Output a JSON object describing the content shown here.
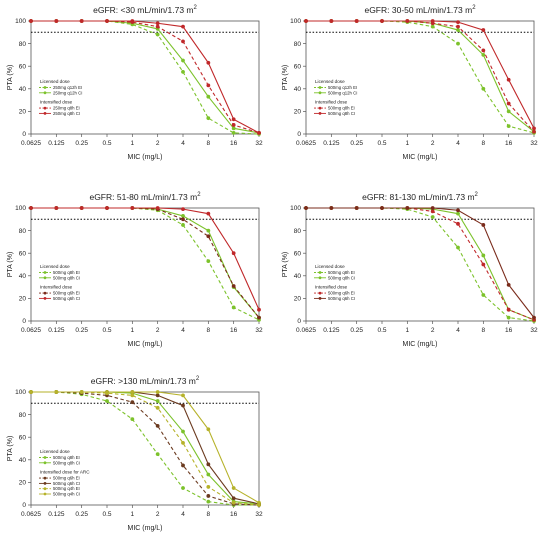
{
  "colors": {
    "green": "#7cc22b",
    "red": "#c0282a",
    "darkred": "#7a2b1b",
    "lightgreen": "#7cc22b",
    "olive": "#b6b22a",
    "brown": "#6b3a1f",
    "target": "#000000"
  },
  "chart_data": [
    {
      "type": "line",
      "title": "eGFR: <30 mL/min/1.73 m",
      "title_sup": "2",
      "xlabel": "MIC (mg/L)",
      "ylabel": "PTA (%)",
      "x_categories": [
        "0.0625",
        "0.125",
        "0.25",
        "0.5",
        "1",
        "2",
        "4",
        "8",
        "16",
        "32"
      ],
      "y_ticks": [
        "0",
        "20",
        "40",
        "60",
        "80",
        "100"
      ],
      "ylim": [
        0,
        100
      ],
      "target_line": 90,
      "legend_groups": [
        {
          "heading": "Licensed dose",
          "items": [
            0,
            1
          ]
        },
        {
          "heading": "Intensified dose",
          "items": [
            2,
            3
          ]
        }
      ],
      "series": [
        {
          "name": "250mg q12h EI",
          "color": "green",
          "dash": true,
          "values": [
            100,
            100,
            100,
            100,
            97,
            88,
            55,
            14,
            1,
            0
          ]
        },
        {
          "name": "250mg q12h CI",
          "color": "green",
          "dash": false,
          "values": [
            100,
            100,
            100,
            100,
            98,
            93,
            65,
            33,
            5,
            1
          ]
        },
        {
          "name": "250mg q8h EI",
          "color": "red",
          "dash": true,
          "values": [
            100,
            100,
            100,
            100,
            99,
            95,
            82,
            43,
            8,
            1
          ]
        },
        {
          "name": "250mg q8h CI",
          "color": "red",
          "dash": false,
          "values": [
            100,
            100,
            100,
            100,
            100,
            98,
            95,
            63,
            13,
            1
          ]
        }
      ]
    },
    {
      "type": "line",
      "title": "eGFR: 30-50 mL/min/1.73 m",
      "title_sup": "2",
      "xlabel": "MIC (mg/L)",
      "ylabel": "PTA (%)",
      "x_categories": [
        "0.0625",
        "0.125",
        "0.25",
        "0.5",
        "1",
        "2",
        "4",
        "8",
        "16",
        "32"
      ],
      "y_ticks": [
        "0",
        "20",
        "40",
        "60",
        "80",
        "100"
      ],
      "ylim": [
        0,
        100
      ],
      "target_line": 90,
      "legend_groups": [
        {
          "heading": "Licensed dose",
          "items": [
            0,
            1
          ]
        },
        {
          "heading": "Intensified dose",
          "items": [
            2,
            3
          ]
        }
      ],
      "series": [
        {
          "name": "500mg q12h EI",
          "color": "green",
          "dash": true,
          "values": [
            100,
            100,
            100,
            100,
            99,
            95,
            80,
            40,
            7,
            1
          ]
        },
        {
          "name": "500mg q12h CI",
          "color": "green",
          "dash": false,
          "values": [
            100,
            100,
            100,
            100,
            100,
            98,
            92,
            70,
            20,
            2
          ]
        },
        {
          "name": "500mg q8h EI",
          "color": "red",
          "dash": true,
          "values": [
            100,
            100,
            100,
            100,
            100,
            98,
            95,
            74,
            27,
            2
          ]
        },
        {
          "name": "500mg q8h CI",
          "color": "red",
          "dash": false,
          "values": [
            100,
            100,
            100,
            100,
            100,
            100,
            99,
            92,
            48,
            5
          ]
        }
      ]
    },
    {
      "type": "line",
      "title": "eGFR: 51-80 mL/min/1.73 m",
      "title_sup": "2",
      "xlabel": "MIC (mg/L)",
      "ylabel": "PTA (%)",
      "x_categories": [
        "0.0625",
        "0.125",
        "0.25",
        "0.5",
        "1",
        "2",
        "4",
        "8",
        "16",
        "32"
      ],
      "y_ticks": [
        "0",
        "20",
        "40",
        "60",
        "80",
        "100"
      ],
      "ylim": [
        0,
        100
      ],
      "target_line": 90,
      "legend_groups": [
        {
          "heading": "Licensed dose",
          "items": [
            0,
            1
          ]
        },
        {
          "heading": "Intensified dose",
          "items": [
            2,
            3
          ]
        }
      ],
      "series": [
        {
          "name": "500mg q8h EI",
          "color": "green",
          "dash": true,
          "values": [
            100,
            100,
            100,
            100,
            100,
            98,
            85,
            53,
            12,
            1
          ]
        },
        {
          "name": "500mg q8h CI",
          "color": "green",
          "dash": false,
          "values": [
            100,
            100,
            100,
            100,
            100,
            99,
            93,
            80,
            30,
            3
          ]
        },
        {
          "name": "500mg q6h EI",
          "color": "darkred",
          "dash": true,
          "values": [
            100,
            100,
            100,
            100,
            100,
            99,
            90,
            75,
            31,
            3
          ]
        },
        {
          "name": "500mg q6h CI",
          "color": "red",
          "dash": false,
          "values": [
            100,
            100,
            100,
            100,
            100,
            100,
            99,
            95,
            60,
            10
          ]
        }
      ]
    },
    {
      "type": "line",
      "title": "eGFR: 81-130 mL/min/1.73 m",
      "title_sup": "2",
      "xlabel": "MIC (mg/L)",
      "ylabel": "PTA (%)",
      "x_categories": [
        "0.0625",
        "0.125",
        "0.25",
        "0.5",
        "1",
        "2",
        "4",
        "8",
        "16",
        "32"
      ],
      "y_ticks": [
        "0",
        "20",
        "40",
        "60",
        "80",
        "100"
      ],
      "ylim": [
        0,
        100
      ],
      "target_line": 90,
      "legend_groups": [
        {
          "heading": "Licensed dose",
          "items": [
            0,
            1
          ]
        },
        {
          "heading": "Intensified dose",
          "items": [
            2,
            3
          ]
        }
      ],
      "series": [
        {
          "name": "500mg q8h EI",
          "color": "green",
          "dash": true,
          "values": [
            100,
            100,
            100,
            100,
            99,
            92,
            65,
            23,
            3,
            0
          ]
        },
        {
          "name": "500mg q8h CI",
          "color": "green",
          "dash": false,
          "values": [
            100,
            100,
            100,
            100,
            100,
            99,
            95,
            58,
            10,
            1
          ]
        },
        {
          "name": "500mg q6h EI",
          "color": "red",
          "dash": true,
          "values": [
            100,
            100,
            100,
            100,
            100,
            97,
            86,
            50,
            10,
            1
          ]
        },
        {
          "name": "500mg q6h CI",
          "color": "darkred",
          "dash": false,
          "values": [
            100,
            100,
            100,
            100,
            100,
            100,
            98,
            85,
            32,
            3
          ]
        }
      ]
    },
    {
      "type": "line",
      "title": "eGFR: >130 mL/min/1.73 m",
      "title_sup": "2",
      "xlabel": "MIC (mg/L)",
      "ylabel": "PTA (%)",
      "x_categories": [
        "0.0625",
        "0.125",
        "0.25",
        "0.5",
        "1",
        "2",
        "4",
        "8",
        "16",
        "32"
      ],
      "y_ticks": [
        "0",
        "20",
        "40",
        "60",
        "80",
        "100"
      ],
      "ylim": [
        0,
        100
      ],
      "target_line": 90,
      "legend_groups": [
        {
          "heading": "Licensed dose",
          "items": [
            0,
            1
          ]
        },
        {
          "heading": "Intensified dose for ARC",
          "items": [
            2,
            3,
            4,
            5
          ]
        }
      ],
      "series": [
        {
          "name": "500mg q8h EI",
          "color": "lightgreen",
          "dash": true,
          "values": [
            100,
            100,
            98,
            92,
            76,
            45,
            15,
            3,
            0,
            0
          ]
        },
        {
          "name": "500mg q8h CI",
          "color": "lightgreen",
          "dash": false,
          "values": [
            100,
            100,
            100,
            100,
            99,
            92,
            65,
            27,
            3,
            1
          ]
        },
        {
          "name": "500mg q6h EI",
          "color": "brown",
          "dash": true,
          "values": [
            100,
            100,
            99,
            97,
            91,
            70,
            35,
            8,
            1,
            0
          ]
        },
        {
          "name": "500mg q6h CI",
          "color": "brown",
          "dash": false,
          "values": [
            100,
            100,
            100,
            100,
            100,
            97,
            88,
            36,
            6,
            1
          ]
        },
        {
          "name": "500mg q4h EI",
          "color": "olive",
          "dash": true,
          "values": [
            100,
            100,
            100,
            99,
            97,
            86,
            55,
            16,
            2,
            0
          ]
        },
        {
          "name": "500mg q4h CI",
          "color": "olive",
          "dash": false,
          "values": [
            100,
            100,
            100,
            100,
            100,
            100,
            97,
            67,
            15,
            2
          ]
        }
      ]
    }
  ]
}
